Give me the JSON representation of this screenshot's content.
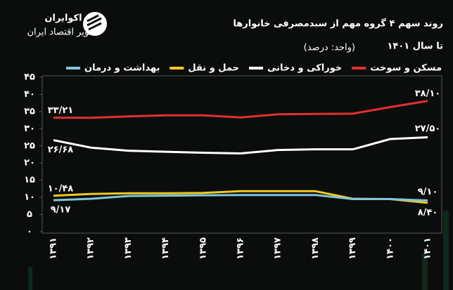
{
  "logo": {
    "name": "اکوایران",
    "tagline": "تصویر اقتصاد ایران"
  },
  "chart_data": {
    "type": "line",
    "title": "روند سهم ۴ گروه مهم از سبدمصرفی خانوارها",
    "title_line2": "تا سال ۱۴۰۱",
    "subtitle": "(واحد: درصد)",
    "categories": [
      "۱۳۹۱",
      "۱۳۹۲",
      "۱۳۹۳",
      "۱۳۹۴",
      "۱۳۹۵",
      "۱۳۹۶",
      "۱۳۹۷",
      "۱۳۹۸",
      "۱۳۹۹",
      "۱۴۰۰",
      "۱۴۰۱"
    ],
    "series": [
      {
        "name": "مسکن و سوخت",
        "color": "#e2302e",
        "values": [
          33.21,
          33.2,
          33.6,
          33.9,
          33.9,
          33.3,
          34.2,
          34.3,
          34.4,
          36.3,
          38.1
        ],
        "value_labels": [
          "۳۳/۲۱",
          null,
          null,
          null,
          null,
          null,
          null,
          null,
          null,
          null,
          "۳۸/۱۰"
        ]
      },
      {
        "name": "خوراکی و دخانی",
        "color": "#ffffff",
        "values": [
          26.68,
          24.5,
          23.6,
          23.3,
          23,
          22.8,
          23.8,
          24,
          24,
          27,
          27.5
        ],
        "value_labels": [
          "۲۶/۶۸",
          null,
          null,
          null,
          null,
          null,
          null,
          null,
          null,
          null,
          "۲۷/۵۰"
        ]
      },
      {
        "name": "حمل و نقل",
        "color": "#f2c81e",
        "values": [
          10.48,
          11,
          11.2,
          11.2,
          11.3,
          11.8,
          11.8,
          11.8,
          9.6,
          9.5,
          8.4
        ],
        "value_labels": [
          "۱۰/۴۸",
          null,
          null,
          null,
          null,
          null,
          null,
          null,
          null,
          null,
          "۸/۴۰"
        ]
      },
      {
        "name": "بهداشت و درمان",
        "color": "#7fc6dc",
        "values": [
          9.17,
          9.6,
          10.4,
          10.5,
          10.6,
          10.7,
          10.7,
          10.7,
          9.5,
          9.5,
          9.1
        ],
        "value_labels": [
          "۹/۱۷",
          null,
          null,
          null,
          null,
          null,
          null,
          null,
          null,
          null,
          "۹/۱۰"
        ]
      }
    ],
    "ylim": [
      0,
      45
    ],
    "yticks": [
      {
        "value": 0,
        "label": "۰"
      },
      {
        "value": 5,
        "label": "۵"
      },
      {
        "value": 10,
        "label": "۱۰"
      },
      {
        "value": 15,
        "label": "۱۵"
      },
      {
        "value": 20,
        "label": "۲۰"
      },
      {
        "value": 25,
        "label": "۲۵"
      },
      {
        "value": 30,
        "label": "۳۰"
      },
      {
        "value": 35,
        "label": "۳۵"
      },
      {
        "value": 40,
        "label": "۴۰"
      },
      {
        "value": 45,
        "label": "۴۵"
      }
    ],
    "grid": false
  }
}
